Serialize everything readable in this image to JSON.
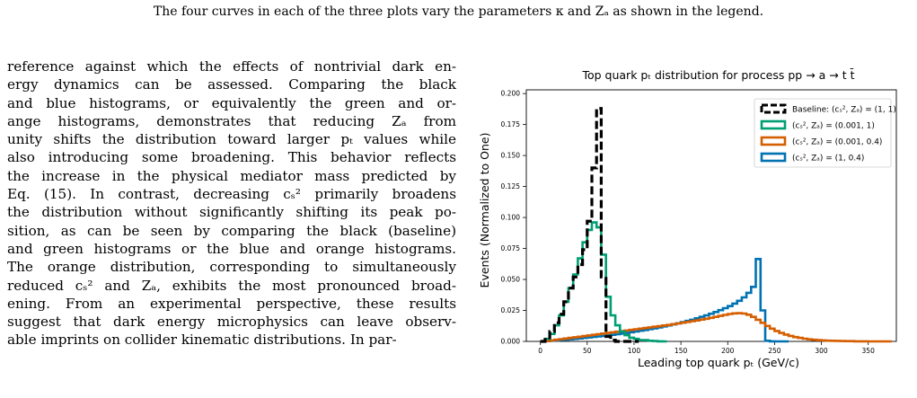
{
  "page": {
    "caption_lines": [
      "The four curves in each of the three plots vary the parameters κ and Zₐ as shown in the legend."
    ],
    "body_lines": [
      "reference against which the effects of nontrivial dark en-",
      "ergy dynamics can be assessed. Comparing the black",
      "and blue histograms, or equivalently the green and or-",
      "ange histograms, demonstrates that reducing Zₐ from",
      "unity shifts the distribution toward larger pₜ values while",
      "also introducing some broadening. This behavior reflects",
      "the increase in the physical mediator mass predicted by",
      "Eq. (15). In contrast, decreasing cₛ² primarily broadens",
      "the distribution without significantly shifting its peak po-",
      "sition, as can be seen by comparing the black (baseline)",
      "and green histograms or the blue and orange histograms.",
      "The orange distribution, corresponding to simultaneously",
      "reduced cₛ² and Zₐ, exhibits the most pronounced broad-",
      "ening. From an experimental perspective, these results",
      "suggest that dark energy microphysics can leave observ-",
      "able imprints on collider kinematic distributions. In par-"
    ]
  },
  "chart_data": {
    "type": "line",
    "title": "Top quark pₜ distribution for process pp → a → t t̄",
    "xlabel": "Leading top quark pₜ (GeV/c)",
    "ylabel": "Events (Normalized to One)",
    "xlim": [
      -15,
      380
    ],
    "ylim": [
      0,
      0.203
    ],
    "xticks": [
      0,
      50,
      100,
      150,
      200,
      250,
      300,
      350
    ],
    "yticks": [
      0.0,
      0.025,
      0.05,
      0.075,
      0.1,
      0.125,
      0.15,
      0.175,
      0.2
    ],
    "ytick_labels": [
      "0.000",
      "0.025",
      "0.050",
      "0.075",
      "0.100",
      "0.125",
      "0.150",
      "0.175",
      "0.200"
    ],
    "legend_position": "top-right",
    "bin_width": 5,
    "series": [
      {
        "name": "Baseline: (cₛ², Zₐ) = (1, 1)",
        "color": "#000000",
        "dashed": true,
        "x": [
          0,
          5,
          10,
          15,
          20,
          25,
          30,
          35,
          40,
          45,
          50,
          55,
          60,
          65,
          70,
          75,
          80,
          85,
          90,
          95,
          100
        ],
        "values": [
          0.0,
          0.003,
          0.008,
          0.015,
          0.022,
          0.032,
          0.043,
          0.052,
          0.062,
          0.074,
          0.097,
          0.14,
          0.188,
          0.052,
          0.004,
          0.001,
          0.0,
          0.0,
          0.0,
          0.0,
          0.0
        ]
      },
      {
        "name": "(cₛ², Zₐ) = (0.001, 1)",
        "color": "#009e73",
        "dashed": false,
        "x": [
          0,
          5,
          10,
          15,
          20,
          25,
          30,
          35,
          40,
          45,
          50,
          55,
          60,
          65,
          70,
          75,
          80,
          85,
          90,
          95,
          100,
          105,
          110,
          115,
          120,
          125,
          130
        ],
        "values": [
          0.0,
          0.002,
          0.006,
          0.013,
          0.021,
          0.032,
          0.043,
          0.054,
          0.067,
          0.08,
          0.09,
          0.096,
          0.092,
          0.07,
          0.036,
          0.021,
          0.013,
          0.008,
          0.005,
          0.003,
          0.002,
          0.001,
          0.001,
          0.0005,
          0.0003,
          0.0001,
          0.0
        ]
      },
      {
        "name": "(cₛ², Zₐ) = (0.001, 0.4)",
        "color": "#d55e00",
        "dashed": false,
        "x": [
          0,
          5,
          10,
          15,
          20,
          25,
          30,
          35,
          40,
          45,
          50,
          55,
          60,
          65,
          70,
          75,
          80,
          85,
          90,
          95,
          100,
          105,
          110,
          115,
          120,
          125,
          130,
          135,
          140,
          145,
          150,
          155,
          160,
          165,
          170,
          175,
          180,
          185,
          190,
          195,
          200,
          205,
          210,
          215,
          220,
          225,
          230,
          235,
          240,
          245,
          250,
          255,
          260,
          265,
          270,
          275,
          280,
          285,
          290,
          295,
          300,
          305,
          310,
          315,
          320,
          325,
          330,
          335,
          340,
          345,
          350,
          355,
          360,
          365,
          370
        ],
        "values": [
          0.0,
          0.0003,
          0.0008,
          0.0013,
          0.0018,
          0.0023,
          0.0028,
          0.0033,
          0.0038,
          0.0043,
          0.0048,
          0.0053,
          0.0058,
          0.0063,
          0.0068,
          0.0073,
          0.0078,
          0.0083,
          0.0088,
          0.0093,
          0.0098,
          0.0103,
          0.0108,
          0.0113,
          0.0118,
          0.0123,
          0.0128,
          0.0133,
          0.0139,
          0.0145,
          0.0151,
          0.0157,
          0.0163,
          0.0169,
          0.0176,
          0.0183,
          0.019,
          0.0198,
          0.0206,
          0.0214,
          0.0221,
          0.0226,
          0.0228,
          0.0225,
          0.0215,
          0.0198,
          0.0175,
          0.015,
          0.0125,
          0.0103,
          0.0084,
          0.0068,
          0.0055,
          0.0044,
          0.0035,
          0.0028,
          0.0022,
          0.0017,
          0.0013,
          0.001,
          0.0008,
          0.0006,
          0.0005,
          0.0004,
          0.0003,
          0.0002,
          0.0002,
          0.0001,
          0.0001,
          0.0001,
          0.0,
          0.0,
          0.0,
          0.0,
          0.0
        ]
      },
      {
        "name": "(cₛ², Zₐ) = (1, 0.4)",
        "color": "#0072b2",
        "dashed": false,
        "x": [
          0,
          5,
          10,
          15,
          20,
          25,
          30,
          35,
          40,
          45,
          50,
          55,
          60,
          65,
          70,
          75,
          80,
          85,
          90,
          95,
          100,
          105,
          110,
          115,
          120,
          125,
          130,
          135,
          140,
          145,
          150,
          155,
          160,
          165,
          170,
          175,
          180,
          185,
          190,
          195,
          200,
          205,
          210,
          215,
          220,
          225,
          230,
          235,
          240,
          245,
          250,
          255,
          260
        ],
        "values": [
          0.0,
          0.0002,
          0.0005,
          0.0008,
          0.0011,
          0.0014,
          0.0017,
          0.002,
          0.0024,
          0.0028,
          0.0032,
          0.0036,
          0.004,
          0.0044,
          0.0048,
          0.0053,
          0.0058,
          0.0063,
          0.0068,
          0.0074,
          0.008,
          0.0086,
          0.0092,
          0.0099,
          0.0106,
          0.0113,
          0.0121,
          0.0129,
          0.0137,
          0.0146,
          0.0155,
          0.0165,
          0.0175,
          0.0186,
          0.0198,
          0.021,
          0.0223,
          0.0237,
          0.0252,
          0.0268,
          0.0285,
          0.0305,
          0.0328,
          0.0355,
          0.0392,
          0.044,
          0.0665,
          0.025,
          0.0005,
          0.0001,
          0.0,
          0.0,
          0.0
        ]
      }
    ]
  }
}
